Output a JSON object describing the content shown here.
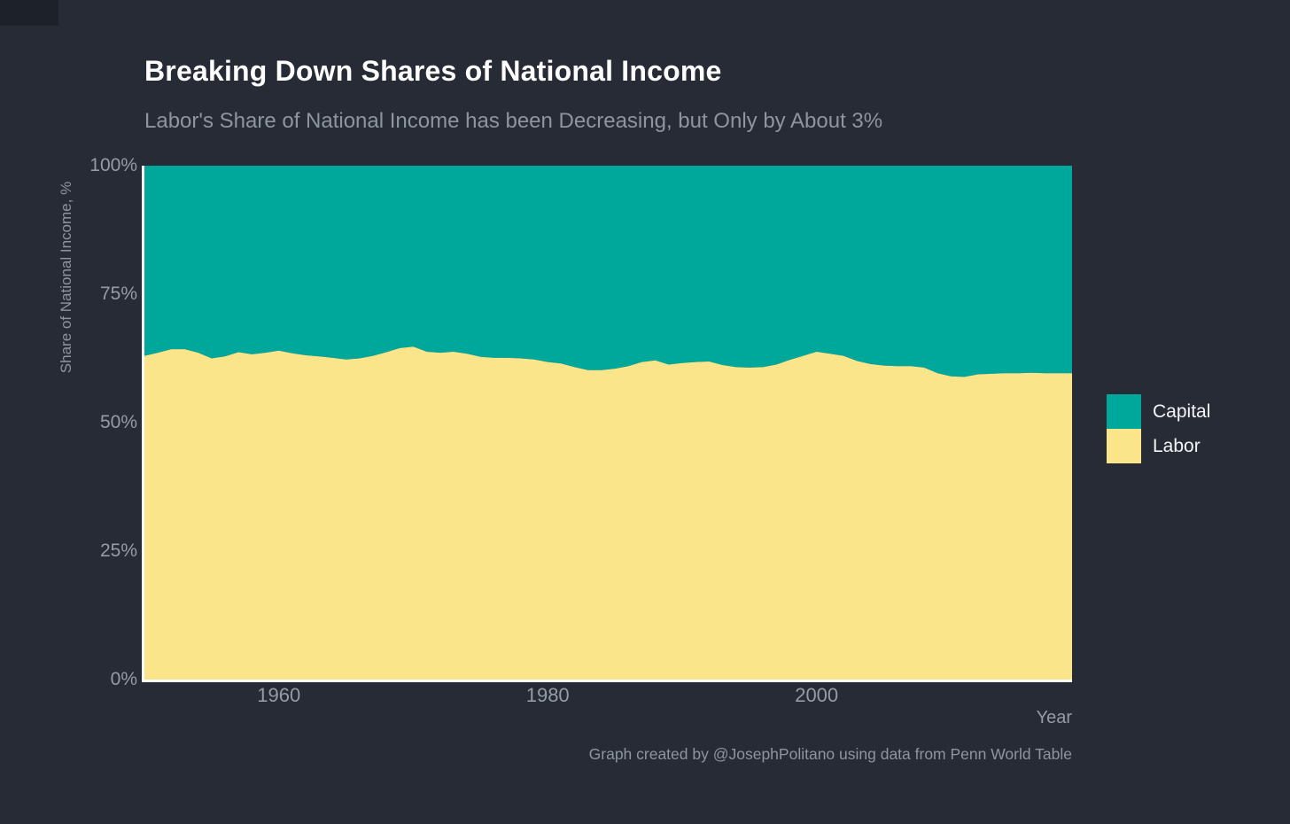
{
  "page": {
    "background_color": "#272b35"
  },
  "header": {
    "title": "Breaking Down Shares of National Income",
    "subtitle": "Labor's Share of National Income has been Decreasing, but Only by About 3%"
  },
  "chart_data": {
    "type": "area",
    "stacked": true,
    "title": "Breaking Down Shares of National Income",
    "subtitle": "Labor's Share of National Income has been Decreasing, but Only by About 3%",
    "x_label": "Year",
    "y_label": "Share of National Income, %",
    "caption": "Graph created by @JosephPolitano using data from Penn World Table",
    "grid": false,
    "legend_position": "right",
    "x_range": [
      1950,
      2019
    ],
    "y_range": [
      0,
      100
    ],
    "x_ticks": [
      {
        "value": 1960,
        "label": "1960"
      },
      {
        "value": 1980,
        "label": "1980"
      },
      {
        "value": 2000,
        "label": "2000"
      }
    ],
    "y_ticks": [
      {
        "value": 0,
        "label": "0%"
      },
      {
        "value": 25,
        "label": "25%"
      },
      {
        "value": 50,
        "label": "50%"
      },
      {
        "value": 75,
        "label": "75%"
      },
      {
        "value": 100,
        "label": "100%"
      }
    ],
    "x": [
      1950,
      1951,
      1952,
      1953,
      1954,
      1955,
      1956,
      1957,
      1958,
      1959,
      1960,
      1961,
      1962,
      1963,
      1964,
      1965,
      1966,
      1967,
      1968,
      1969,
      1970,
      1971,
      1972,
      1973,
      1974,
      1975,
      1976,
      1977,
      1978,
      1979,
      1980,
      1981,
      1982,
      1983,
      1984,
      1985,
      1986,
      1987,
      1988,
      1989,
      1990,
      1991,
      1992,
      1993,
      1994,
      1995,
      1996,
      1997,
      1998,
      1999,
      2000,
      2001,
      2002,
      2003,
      2004,
      2005,
      2006,
      2007,
      2008,
      2009,
      2010,
      2011,
      2012,
      2013,
      2014,
      2015,
      2016,
      2017,
      2018,
      2019
    ],
    "series": [
      {
        "name": "Capital",
        "color": "#00a89b",
        "values": [
          37.0,
          36.4,
          35.7,
          35.7,
          36.4,
          37.5,
          37.1,
          36.3,
          36.7,
          36.4,
          36.0,
          36.5,
          36.9,
          37.1,
          37.4,
          37.7,
          37.5,
          37.0,
          36.3,
          35.5,
          35.2,
          36.2,
          36.4,
          36.2,
          36.6,
          37.2,
          37.4,
          37.4,
          37.5,
          37.7,
          38.2,
          38.5,
          39.2,
          39.8,
          39.8,
          39.5,
          39.0,
          38.2,
          37.9,
          38.7,
          38.4,
          38.2,
          38.1,
          38.8,
          39.2,
          39.3,
          39.2,
          38.7,
          37.8,
          37.0,
          36.2,
          36.6,
          37.0,
          38.0,
          38.6,
          38.9,
          39.0,
          39.0,
          39.3,
          40.4,
          41.0,
          41.1,
          40.6,
          40.5,
          40.4,
          40.4,
          40.3,
          40.4,
          40.4,
          40.4
        ]
      },
      {
        "name": "Labor",
        "color": "#fbe58b",
        "values": [
          63.0,
          63.6,
          64.3,
          64.3,
          63.6,
          62.5,
          62.9,
          63.7,
          63.3,
          63.6,
          64.0,
          63.5,
          63.1,
          62.9,
          62.6,
          62.3,
          62.5,
          63.0,
          63.7,
          64.5,
          64.8,
          63.8,
          63.6,
          63.8,
          63.4,
          62.8,
          62.6,
          62.6,
          62.5,
          62.3,
          61.8,
          61.5,
          60.8,
          60.2,
          60.2,
          60.5,
          61.0,
          61.8,
          62.1,
          61.3,
          61.6,
          61.8,
          61.9,
          61.2,
          60.8,
          60.7,
          60.8,
          61.3,
          62.2,
          63.0,
          63.8,
          63.4,
          63.0,
          62.0,
          61.4,
          61.1,
          61.0,
          61.0,
          60.7,
          59.6,
          59.0,
          58.9,
          59.4,
          59.5,
          59.6,
          59.6,
          59.7,
          59.6,
          59.6,
          59.6
        ]
      }
    ]
  }
}
